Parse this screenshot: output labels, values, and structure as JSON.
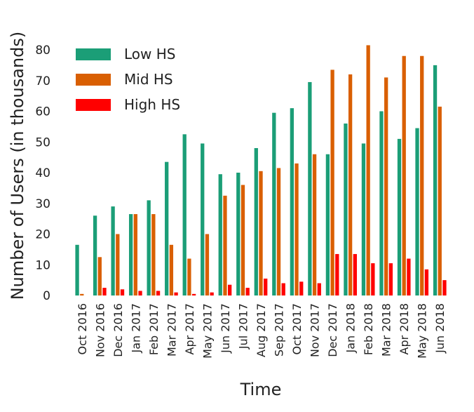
{
  "chart_data": {
    "type": "bar",
    "title": "",
    "xlabel": "Time",
    "ylabel": "Number of Users (in thousands)",
    "ylim": [
      0,
      85
    ],
    "yticks": [
      0,
      10,
      20,
      30,
      40,
      50,
      60,
      70,
      80
    ],
    "grid": false,
    "legend_position": "top-left",
    "categories": [
      "Oct 2016",
      "Nov 2016",
      "Dec 2016",
      "Jan 2017",
      "Feb 2017",
      "Mar 2017",
      "Apr 2017",
      "May 2017",
      "Jun 2017",
      "Jul 2017",
      "Aug 2017",
      "Sep 2017",
      "Oct 2017",
      "Nov 2017",
      "Dec 2017",
      "Jan 2018",
      "Feb 2018",
      "Mar 2018",
      "Apr 2018",
      "May 2018",
      "Jun 2018"
    ],
    "series": [
      {
        "name": "Low HS",
        "color": "#1b9e77",
        "values": [
          16.5,
          26,
          29,
          26.5,
          31,
          43.5,
          52.5,
          49.5,
          39.5,
          40,
          48,
          59.5,
          61,
          69.5,
          46,
          56,
          49.5,
          60,
          51,
          54.5,
          75
        ]
      },
      {
        "name": "Mid HS",
        "color": "#d95f02",
        "values": [
          0.5,
          12.5,
          20,
          26.5,
          26.5,
          16.5,
          12,
          20,
          32.5,
          36,
          40.5,
          41.5,
          43,
          46,
          73.5,
          72,
          81.5,
          71,
          78,
          78,
          61.5
        ]
      },
      {
        "name": "High HS",
        "color": "#ff0000",
        "values": [
          0,
          2.5,
          2,
          1.5,
          1.5,
          1,
          0.5,
          1,
          3.5,
          2.5,
          5.5,
          4,
          4.5,
          4,
          13.5,
          13.5,
          10.5,
          10.5,
          12,
          8.5,
          5
        ]
      }
    ]
  }
}
